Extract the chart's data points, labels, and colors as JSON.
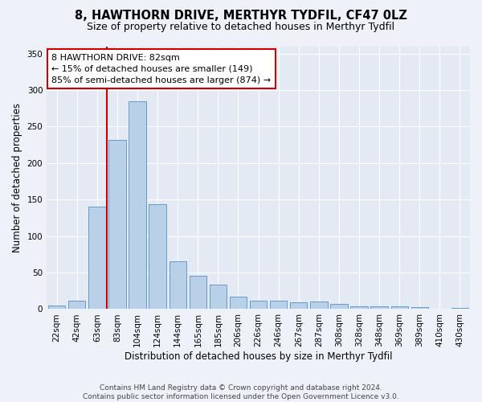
{
  "title": "8, HAWTHORN DRIVE, MERTHYR TYDFIL, CF47 0LZ",
  "subtitle": "Size of property relative to detached houses in Merthyr Tydfil",
  "xlabel": "Distribution of detached houses by size in Merthyr Tydfil",
  "ylabel": "Number of detached properties",
  "categories": [
    "22sqm",
    "42sqm",
    "63sqm",
    "83sqm",
    "104sqm",
    "124sqm",
    "144sqm",
    "165sqm",
    "185sqm",
    "206sqm",
    "226sqm",
    "246sqm",
    "267sqm",
    "287sqm",
    "308sqm",
    "328sqm",
    "348sqm",
    "369sqm",
    "389sqm",
    "410sqm",
    "430sqm"
  ],
  "values": [
    5,
    12,
    140,
    232,
    285,
    144,
    65,
    46,
    33,
    17,
    12,
    12,
    9,
    10,
    7,
    4,
    4,
    4,
    3,
    1,
    2
  ],
  "bar_color": "#b8d0e8",
  "bar_edge_color": "#6699cc",
  "vline_color": "#cc0000",
  "vline_x_idx": 2.5,
  "annotation_text_line1": "8 HAWTHORN DRIVE: 82sqm",
  "annotation_text_line2": "← 15% of detached houses are smaller (149)",
  "annotation_text_line3": "85% of semi-detached houses are larger (874) →",
  "annotation_box_color": "#ffffff",
  "annotation_box_edge": "#cc0000",
  "ylim": [
    0,
    360
  ],
  "yticks": [
    0,
    50,
    100,
    150,
    200,
    250,
    300,
    350
  ],
  "footer": "Contains HM Land Registry data © Crown copyright and database right 2024.\nContains public sector information licensed under the Open Government Licence v3.0.",
  "bg_color": "#eef2f8",
  "plot_bg_color": "#e4eaf4",
  "grid_color": "#ffffff",
  "title_fontsize": 10.5,
  "subtitle_fontsize": 9,
  "axis_label_fontsize": 8.5,
  "tick_fontsize": 7.5,
  "annotation_fontsize": 8,
  "footer_fontsize": 6.5
}
